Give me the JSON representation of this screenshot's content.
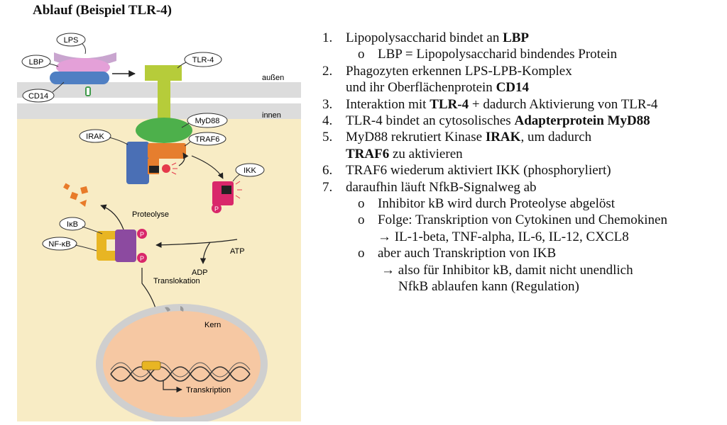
{
  "title": "Ablauf (Beispiel TLR-4)",
  "diagram": {
    "labels": {
      "lps": "LPS",
      "lbp": "LBP",
      "cd14": "CD14",
      "tlr4": "TLR-4",
      "outside": "außen",
      "inside": "innen",
      "myd88": "MyD88",
      "irak": "IRAK",
      "traf6": "TRAF6",
      "ikk": "IKK",
      "p": "P",
      "proteolyse": "Proteolyse",
      "ikb": "IκB",
      "nfkb": "NF-κB",
      "atp": "ATP",
      "adp": "ADP",
      "translokation": "Translokation",
      "kern": "Kern",
      "transkription": "Transkription"
    }
  },
  "steps": {
    "s1": {
      "num": "1.",
      "text": "Lipopolysaccharid bindet an ",
      "bold": "LBP"
    },
    "s1a": {
      "bullet": "o",
      "text": "LBP = Lipopolysaccharid bindendes Protein"
    },
    "s2": {
      "num": "2.",
      "text": "Phagozyten erkennen LPS-LPB-Komplex",
      "line2": "und ihr Oberflächenprotein ",
      "bold": "CD14"
    },
    "s3": {
      "num": "3.",
      "text": "Interaktion mit ",
      "bold": "TLR-4",
      "text2": " + dadurch Aktivierung von TLR-4"
    },
    "s4": {
      "num": "4.",
      "text": "TLR-4 bindet an cytosolisches ",
      "bold": "Adapterprotein MyD88"
    },
    "s5": {
      "num": "5.",
      "text": "MyD88 rekrutiert Kinase ",
      "bold": "IRAK",
      "text2": ", um dadurch",
      "bold2": "TRAF6",
      "line2": " zu aktivieren"
    },
    "s6": {
      "num": "6.",
      "text": "TRAF6 wiederum aktiviert IKK (phosphoryliert)"
    },
    "s7": {
      "num": "7.",
      "text": "daraufhin läuft NfkB-Signalweg ab"
    },
    "s7a": {
      "bullet": "o",
      "text": "Inhibitor kB wird durch Proteolyse abgelöst"
    },
    "s7b": {
      "bullet": "o",
      "text": "Folge: Transkription von Cytokinen und Chemokinen",
      "arrow": "→",
      "line2": " IL-1-beta, TNF-alpha, IL-6, IL-12, CXCL8"
    },
    "s7c": {
      "bullet": "o",
      "text": "aber auch Transkription von IKB",
      "arrow": "→",
      "line2": " also für Inhibitor kB, damit nicht unendlich",
      "line3": "NfkB ablaufen kann (Regulation)"
    }
  }
}
